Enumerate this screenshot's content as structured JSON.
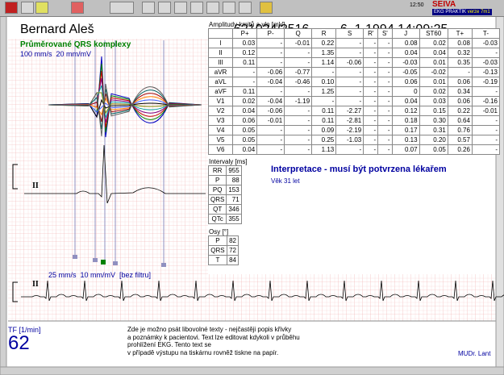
{
  "toolbar": {
    "time": "12:50",
    "logo": "SEIVA",
    "product": "EKG PRAKTIK",
    "version": "verze 7m1"
  },
  "header": {
    "patient": "Bernard Aleš",
    "id": "621024/2516",
    "datetime": "6. 1.1994 14:09:25"
  },
  "averaged": {
    "title": "Průměrované QRS komplexy",
    "scale": "100 mm/s  20 mm/mV",
    "lead": "II"
  },
  "amplitudes": {
    "title": "Amplitudy kmitů a vln [mV]",
    "columns": [
      "P+",
      "P-",
      "Q",
      "R",
      "S",
      "R'",
      "S'",
      "J",
      "ST60",
      "T+",
      "T-"
    ],
    "rows": [
      [
        "I",
        "0.03",
        "-",
        "-0.01",
        "0.22",
        "-",
        "-",
        "-",
        "0.08",
        "0.02",
        "0.08",
        "-0.03"
      ],
      [
        "II",
        "0.12",
        "-",
        "-",
        "1.35",
        "-",
        "-",
        "-",
        "0.04",
        "0.04",
        "0.32",
        "-"
      ],
      [
        "III",
        "0.11",
        "-",
        "-",
        "1.14",
        "-0.06",
        "-",
        "-",
        "-0.03",
        "0.01",
        "0.35",
        "-0.03"
      ],
      [
        "aVR",
        "-",
        "-0.06",
        "-0.77",
        "-",
        "-",
        "-",
        "-",
        "-0.05",
        "-0.02",
        "-",
        "-0.13"
      ],
      [
        "aVL",
        "-",
        "-0.04",
        "-0.46",
        "0.10",
        "-",
        "-",
        "-",
        "0.06",
        "0.01",
        "0.06",
        "-0.19"
      ],
      [
        "aVF",
        "0.11",
        "-",
        "-",
        "1.25",
        "-",
        "-",
        "-",
        "0",
        "0.02",
        "0.34",
        "-"
      ],
      [
        "V1",
        "0.02",
        "-0.04",
        "-1.19",
        "-",
        "-",
        "-",
        "-",
        "0.04",
        "0.03",
        "0.06",
        "-0.16"
      ],
      [
        "V2",
        "0.04",
        "-0.06",
        "-",
        "0.11",
        "-2.27",
        "-",
        "-",
        "0.12",
        "0.15",
        "0.22",
        "-0.01"
      ],
      [
        "V3",
        "0.06",
        "-0.01",
        "-",
        "0.11",
        "-2.81",
        "-",
        "-",
        "0.18",
        "0.30",
        "0.64",
        "-"
      ],
      [
        "V4",
        "0.05",
        "-",
        "-",
        "0.09",
        "-2.19",
        "-",
        "-",
        "0.17",
        "0.31",
        "0.76",
        "-"
      ],
      [
        "V5",
        "0.05",
        "-",
        "-",
        "0.25",
        "-1.03",
        "-",
        "-",
        "0.13",
        "0.20",
        "0.57",
        "-"
      ],
      [
        "V6",
        "0.04",
        "-",
        "-",
        "1.13",
        "-",
        "-",
        "-",
        "0.07",
        "0.05",
        "0.26",
        "-"
      ]
    ]
  },
  "intervals": {
    "title": "Intervaly [ms]",
    "rows": [
      [
        "RR",
        "955"
      ],
      [
        "P",
        "88"
      ],
      [
        "PQ",
        "153"
      ],
      [
        "QRS",
        "71"
      ],
      [
        "QT",
        "346"
      ],
      [
        "QTc",
        "355"
      ]
    ]
  },
  "axes": {
    "title": "Osy [°]",
    "rows": [
      [
        "P",
        "82"
      ],
      [
        "QRS",
        "72"
      ],
      [
        "T",
        "84"
      ]
    ]
  },
  "interpretation": {
    "title": "Interpretace - musí být potvrzena lékařem",
    "text": "Věk 31 let"
  },
  "strip": {
    "lead": "II",
    "scale": "25 mm/s  10 mm/mV  [bez filtru]"
  },
  "footer": {
    "rate_label": "TF [1/min]",
    "rate": "62",
    "notes": [
      "Zde je možno psát libovolné texty - nejčastěji popis křivky",
      "a poznámky k pacientovi. Text lze editovat kdykoli v průběhu",
      "prohlížení EKG. Tento text se",
      "v případě výstupu na tiskárnu rovněž tiskne na papír."
    ],
    "doctor": "MUDr. Lant"
  }
}
